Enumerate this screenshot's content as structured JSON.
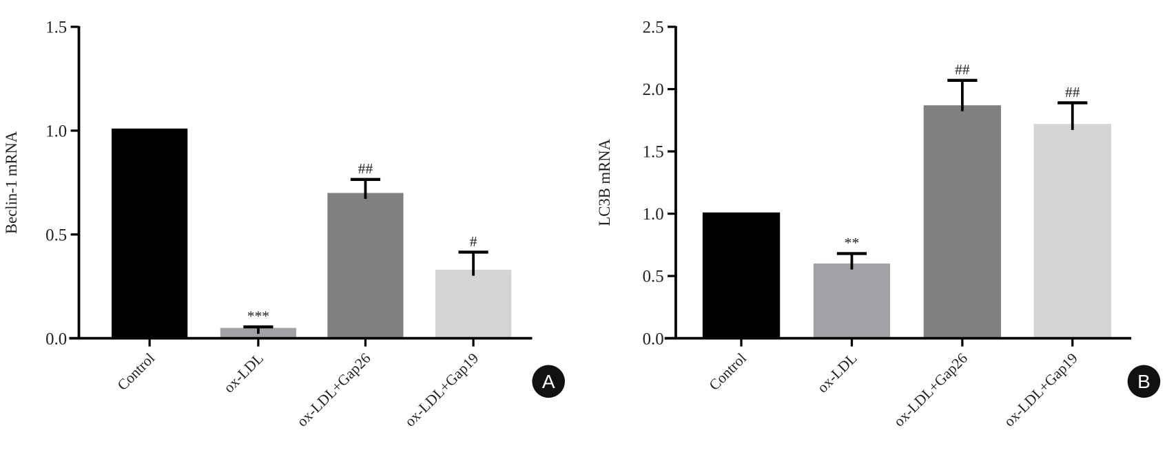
{
  "chart_data": [
    {
      "type": "bar",
      "panel_label": "A",
      "title": "",
      "xlabel": "",
      "ylabel": "Beclin-1 mRNA",
      "ylim": [
        0,
        1.5
      ],
      "yticks": [
        "0.0",
        "0.5",
        "1.0",
        "1.5"
      ],
      "ytick_values": [
        0,
        0.5,
        1.0,
        1.5
      ],
      "categories": [
        "Control",
        "ox-LDL",
        "ox-LDL+Gap26",
        "ox-LDL+Gap19"
      ],
      "values": [
        1.01,
        0.05,
        0.7,
        0.33
      ],
      "error_upper": [
        null,
        0.055,
        0.765,
        0.415
      ],
      "annotations": [
        "",
        "***",
        "##",
        "#"
      ],
      "colors": [
        "#000000",
        "#a2a2a6",
        "#808080",
        "#d4d4d4"
      ],
      "grid": false
    },
    {
      "type": "bar",
      "panel_label": "B",
      "title": "",
      "xlabel": "",
      "ylabel": "LC3B mRNA",
      "ylim": [
        0,
        2.5
      ],
      "yticks": [
        "0.0",
        "0.5",
        "1.0",
        "1.5",
        "2.0",
        "2.5"
      ],
      "ytick_values": [
        0,
        0.5,
        1.0,
        1.5,
        2.0,
        2.5
      ],
      "categories": [
        "Control",
        "ox-LDL",
        "ox-LDL+Gap26",
        "ox-LDL+Gap19"
      ],
      "values": [
        1.01,
        0.6,
        1.87,
        1.72
      ],
      "error_upper": [
        null,
        0.68,
        2.07,
        1.89
      ],
      "annotations": [
        "",
        "**",
        "##",
        "##"
      ],
      "colors": [
        "#000000",
        "#a2a2a6",
        "#808080",
        "#d4d4d4"
      ],
      "grid": false
    }
  ]
}
